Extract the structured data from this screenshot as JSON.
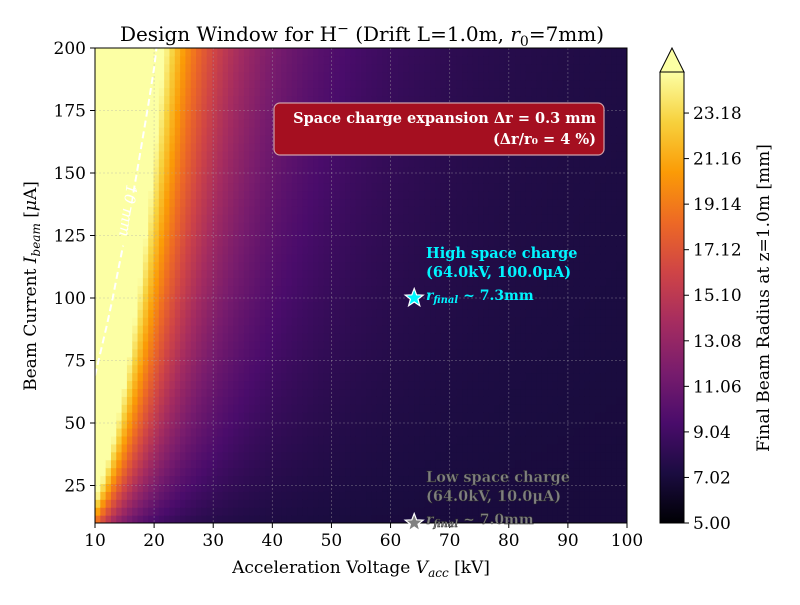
{
  "chart_data": {
    "type": "heatmap",
    "title_parts": {
      "prefix": "Design Window for H",
      "superscript": "−",
      "suffix_a": " (Drift L=1.0m, ",
      "r_symbol": "r",
      "r_subscript": "0",
      "suffix_b": "=7mm)"
    },
    "xlabel_parts": {
      "text": "Acceleration Voltage ",
      "symbol": "V",
      "subscript": "acc",
      "unit": " [kV]"
    },
    "ylabel_parts": {
      "text": "Beam Current ",
      "symbol": "I",
      "subscript": "beam",
      "unit_a": " [",
      "mu": "μ",
      "unit_b": "A]"
    },
    "xlim": [
      10,
      100
    ],
    "ylim": [
      10,
      200
    ],
    "x_ticks": [
      "10",
      "20",
      "30",
      "40",
      "50",
      "60",
      "70",
      "80",
      "90",
      "100"
    ],
    "y_ticks": [
      "25",
      "50",
      "75",
      "100",
      "125",
      "150",
      "175",
      "200"
    ],
    "grid": true,
    "colorbar": {
      "label": "Final Beam Radius at z=1.0m [mm]",
      "min": 5.0,
      "max": 25.0,
      "ticks": [
        "5.00",
        "7.02",
        "9.04",
        "11.06",
        "13.08",
        "15.10",
        "17.12",
        "19.14",
        "21.16",
        "23.18"
      ],
      "extend": "max",
      "colormap": "inferno",
      "stops": [
        "#000004",
        "#1b0c41",
        "#4a0c6b",
        "#781c6d",
        "#a52c60",
        "#cf4446",
        "#ed6925",
        "#fb9b06",
        "#f7d13d",
        "#fcffa4"
      ]
    },
    "contour": {
      "label": "10 mm",
      "level": 10,
      "points": [
        [
          10,
          69
        ],
        [
          11,
          79
        ],
        [
          12,
          89
        ],
        [
          13,
          100
        ],
        [
          14,
          112
        ],
        [
          15,
          124
        ],
        [
          16,
          136
        ],
        [
          17,
          149
        ],
        [
          18,
          163
        ],
        [
          19,
          177
        ],
        [
          20,
          192
        ],
        [
          20.4,
          200
        ]
      ]
    },
    "info_box": {
      "line1": "Space charge expansion Δr = 0.3 mm",
      "line2": "(Δr/r₀ = 4 %)",
      "color": "#a50f20"
    },
    "points": [
      {
        "x": 64.0,
        "y": 100.0,
        "title": "High space charge",
        "params": "(64.0kV, 100.0μA)",
        "radius_text": "r",
        "radius_sub": "final",
        "radius_value": " ~ 7.3mm",
        "color": "#00f5ff"
      },
      {
        "x": 64.0,
        "y": 10.0,
        "title": "Low space charge",
        "params": "(64.0kV, 10.0μA)",
        "radius_text": "r",
        "radius_sub": "final",
        "radius_value": " ~ 7.0mm",
        "color": "#808080"
      }
    ],
    "field_model": {
      "r0": 7.0,
      "coef": 600
    }
  }
}
